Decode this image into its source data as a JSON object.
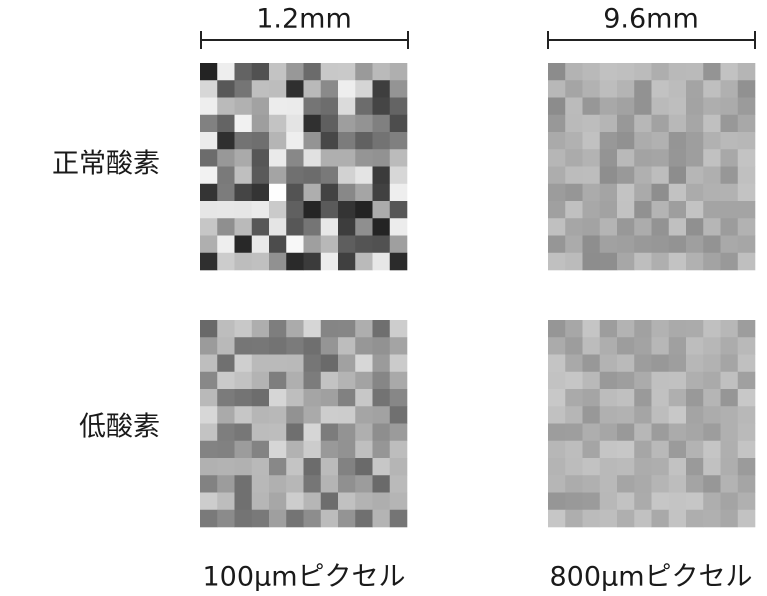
{
  "header": {
    "scales": [
      "1.2mm",
      "9.6mm"
    ]
  },
  "rows": [
    "正常酸素",
    "低酸素"
  ],
  "footer": [
    "100μmピクセル",
    "800μmピクセル"
  ]
}
